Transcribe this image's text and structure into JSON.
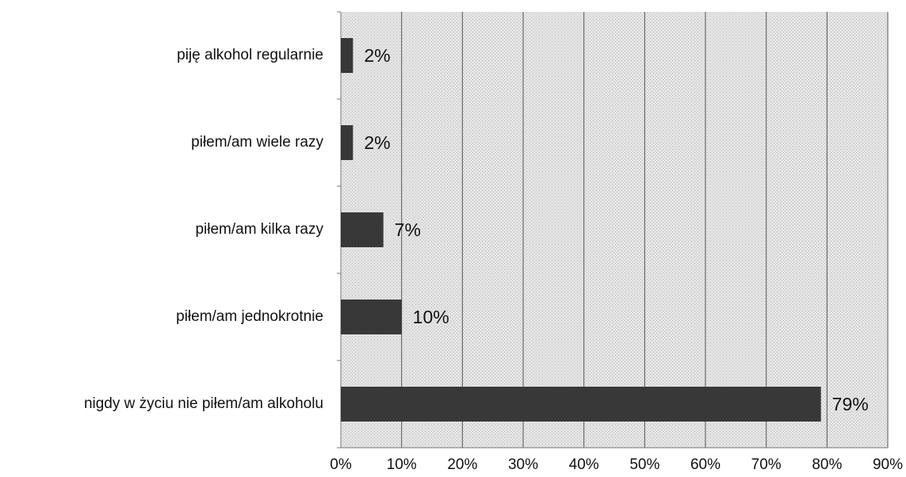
{
  "chart_data": {
    "type": "bar",
    "orientation": "horizontal",
    "categories": [
      "piję alkohol regularnie",
      "piłem/am wiele razy",
      "piłem/am kilka razy",
      "piłem/am jednokrotnie",
      "nigdy w życiu nie piłem/am alkoholu"
    ],
    "values": [
      2,
      2,
      7,
      10,
      79
    ],
    "value_labels": [
      "2%",
      "2%",
      "7%",
      "10%",
      "79%"
    ],
    "color": "#383838",
    "xlim": [
      0,
      90
    ],
    "xticks": [
      {
        "value": 0,
        "label": "0%"
      },
      {
        "value": 10,
        "label": "10%"
      },
      {
        "value": 20,
        "label": "20%"
      },
      {
        "value": 30,
        "label": "30%"
      },
      {
        "value": 40,
        "label": "40%"
      },
      {
        "value": 50,
        "label": "50%"
      },
      {
        "value": 60,
        "label": "60%"
      },
      {
        "value": 70,
        "label": "70%"
      },
      {
        "value": 80,
        "label": "80%"
      },
      {
        "value": 90,
        "label": "90%"
      }
    ],
    "grid": true
  }
}
